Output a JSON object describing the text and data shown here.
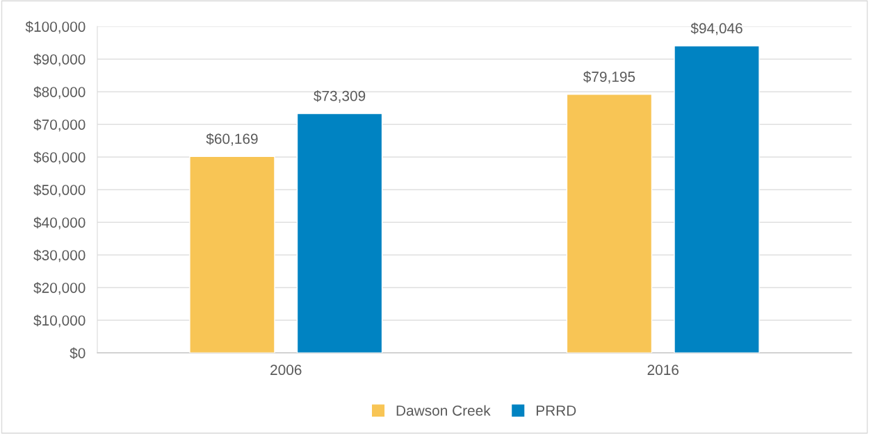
{
  "chart_data": {
    "type": "bar",
    "categories": [
      "2006",
      "2016"
    ],
    "series": [
      {
        "name": "Dawson Creek",
        "color": "#f8c555",
        "values": [
          60169,
          79195
        ],
        "value_labels": [
          "$60,169",
          "$79,195"
        ]
      },
      {
        "name": "PRRD",
        "color": "#0083c2",
        "values": [
          73309,
          94046
        ],
        "value_labels": [
          "$73,309",
          "$94,046"
        ]
      }
    ],
    "ylim": [
      0,
      100000
    ],
    "yticks": [
      {
        "value": 0,
        "label": "$0"
      },
      {
        "value": 10000,
        "label": "$10,000"
      },
      {
        "value": 20000,
        "label": "$20,000"
      },
      {
        "value": 30000,
        "label": "$30,000"
      },
      {
        "value": 40000,
        "label": "$40,000"
      },
      {
        "value": 50000,
        "label": "$50,000"
      },
      {
        "value": 60000,
        "label": "$60,000"
      },
      {
        "value": 70000,
        "label": "$70,000"
      },
      {
        "value": 80000,
        "label": "$80,000"
      },
      {
        "value": 90000,
        "label": "$90,000"
      },
      {
        "value": 100000,
        "label": "$100,000"
      }
    ],
    "grid": "y",
    "legend": "bottom"
  }
}
